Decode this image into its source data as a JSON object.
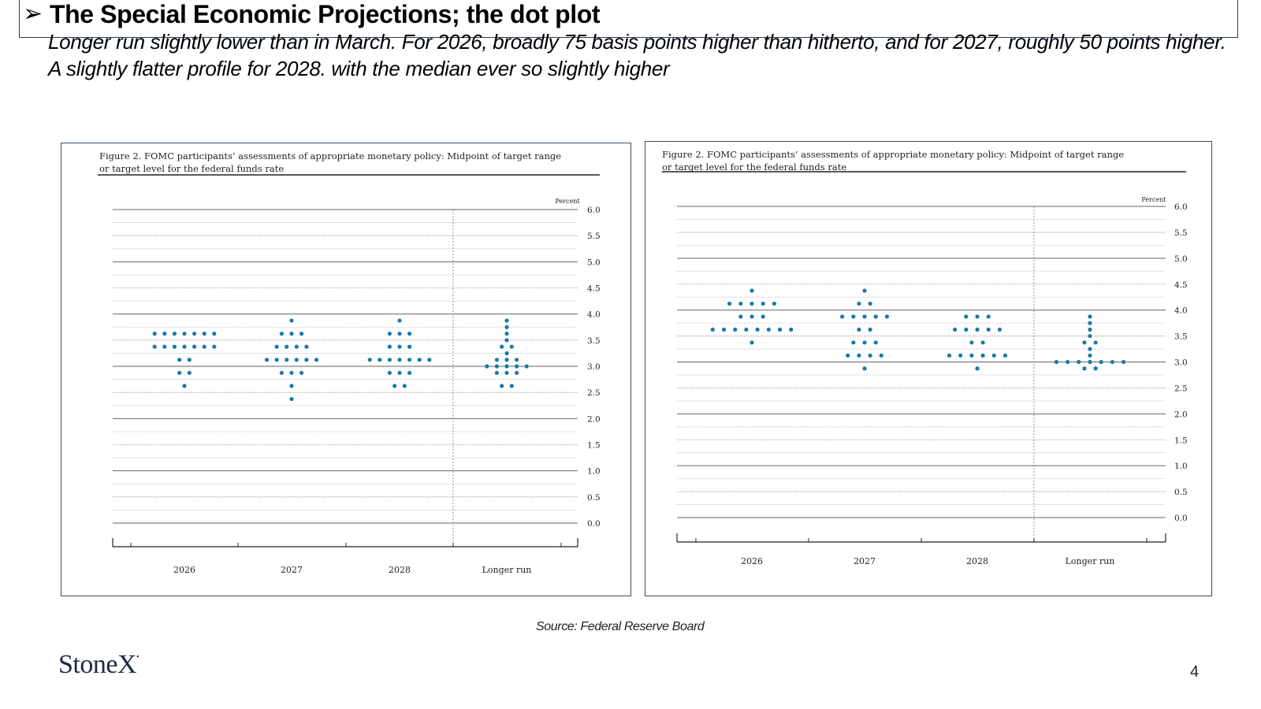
{
  "header": {
    "title": "The Special Economic Projections; the dot plot",
    "subtitle": "Longer run slightly lower than in March.  For 2026, broadly 75 basis points higher than hitherto, and for 2027, roughly 50 points higher. A slightly flatter profile for 2028. with the median ever so slightly higher"
  },
  "source": "Source: Federal Reserve Board",
  "logo_text": "StoneX",
  "page_number": "4",
  "colors": {
    "dot": "#1a7aa6",
    "border": "#2a3b5c"
  },
  "icons": {
    "title_bullet": "arrow-bullet-icon"
  },
  "chart_data": [
    {
      "type": "scatter",
      "title": "Figure 2. FOMC participants’ assessments of appropriate monetary policy: Midpoint of target range or target level for the federal funds rate",
      "unit_label": "Percent",
      "categories": [
        "2026",
        "2027",
        "2028",
        "Longer run"
      ],
      "yticks": [
        "6.0",
        "5.5",
        "5.0",
        "4.5",
        "4.0",
        "3.5",
        "3.0",
        "2.5",
        "2.0",
        "1.5",
        "1.0",
        "0.5",
        "0.0"
      ],
      "ylim": [
        0,
        6
      ],
      "grid": true,
      "dots": [
        {
          "category": "2026",
          "counts": {
            "3.625": 7,
            "3.375": 7,
            "3.125": 2,
            "2.875": 2,
            "2.625": 1
          }
        },
        {
          "category": "2027",
          "counts": {
            "3.875": 1,
            "3.625": 3,
            "3.375": 4,
            "3.125": 6,
            "2.875": 3,
            "2.625": 1,
            "2.375": 1
          }
        },
        {
          "category": "2028",
          "counts": {
            "3.875": 1,
            "3.625": 3,
            "3.375": 3,
            "3.125": 7,
            "2.875": 3,
            "2.625": 2
          }
        },
        {
          "category": "Longer run",
          "counts": {
            "3.875": 1,
            "3.75": 1,
            "3.625": 1,
            "3.5": 1,
            "3.375": 2,
            "3.25": 1,
            "3.125": 3,
            "3.0": 5,
            "2.875": 3,
            "2.625": 2
          }
        }
      ]
    },
    {
      "type": "scatter",
      "title": "Figure 2. FOMC participants’ assessments of appropriate monetary policy: Midpoint of target range or target level for the federal funds rate",
      "unit_label": "Percent",
      "categories": [
        "2026",
        "2027",
        "2028",
        "Longer run"
      ],
      "yticks": [
        "6.0",
        "5.5",
        "5.0",
        "4.5",
        "4.0",
        "3.5",
        "3.0",
        "2.5",
        "2.0",
        "1.5",
        "1.0",
        "0.5",
        "0.0"
      ],
      "ylim": [
        0,
        6
      ],
      "grid": true,
      "dots": [
        {
          "category": "2026",
          "counts": {
            "4.375": 1,
            "4.125": 5,
            "3.875": 3,
            "3.625": 8,
            "3.375": 1
          }
        },
        {
          "category": "2027",
          "counts": {
            "4.375": 1,
            "4.125": 2,
            "3.875": 5,
            "3.625": 2,
            "3.375": 3,
            "3.125": 4,
            "2.875": 1
          }
        },
        {
          "category": "2028",
          "counts": {
            "3.875": 3,
            "3.625": 5,
            "3.375": 2,
            "3.125": 6,
            "2.875": 1
          }
        },
        {
          "category": "Longer run",
          "counts": {
            "3.875": 1,
            "3.75": 1,
            "3.625": 1,
            "3.5": 1,
            "3.375": 2,
            "3.25": 1,
            "3.125": 1,
            "3.0": 7,
            "2.875": 2
          }
        }
      ]
    }
  ]
}
